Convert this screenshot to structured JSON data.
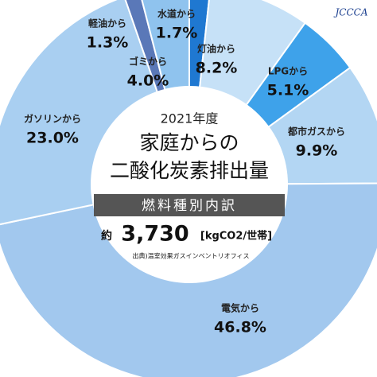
{
  "chart_data": {
    "type": "pie",
    "subtitle": "2021年度",
    "title_line1": "家庭からの",
    "title_line2": "二酸化炭素排出量",
    "banner": "燃料種別内訳",
    "total_prefix": "約",
    "total": "3,730",
    "total_unit": "[kgCO2/世帯]",
    "source": "出典)温室効果ガスインベントリオフィス",
    "logo": "JCCCA",
    "categories": [
      "水道から",
      "灯油から",
      "LPGから",
      "都市ガスから",
      "電気から",
      "ガソリンから",
      "軽油から",
      "ゴミから"
    ],
    "values": [
      1.7,
      8.2,
      5.1,
      9.9,
      46.8,
      23.0,
      1.3,
      4.0
    ],
    "value_labels": [
      "1.7%",
      "8.2%",
      "5.1%",
      "9.9%",
      "46.8%",
      "23.0%",
      "1.3%",
      "4.0%"
    ],
    "colors": [
      "#1f78d1",
      "#c6e1f7",
      "#3ea2ea",
      "#b3d6f3",
      "#a2c8ee",
      "#a9cff1",
      "#5a78b8",
      "#8fc3ee"
    ]
  }
}
